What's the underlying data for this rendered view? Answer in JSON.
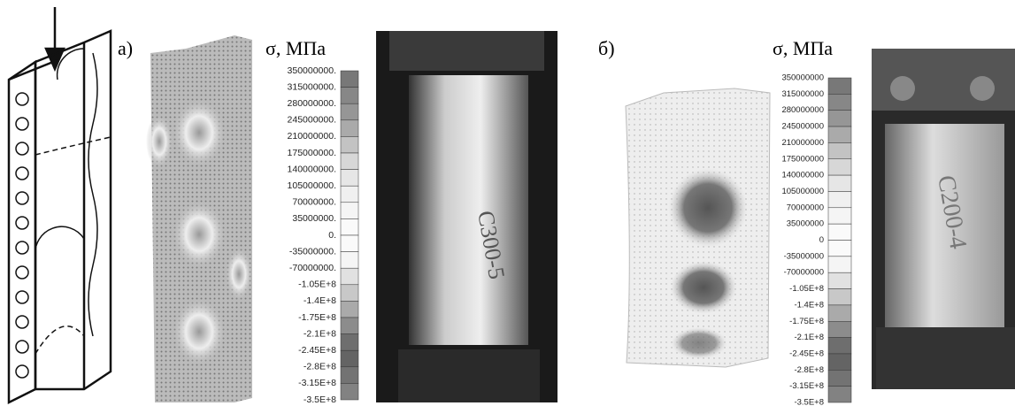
{
  "panel_a": {
    "label": "а)",
    "legend": {
      "title": "σ, МПа",
      "labels": [
        "350000000.",
        "315000000.",
        "280000000.",
        "245000000.",
        "210000000.",
        "175000000.",
        "140000000.",
        "105000000.",
        "70000000.",
        "35000000.",
        "0.",
        "-35000000.",
        "-70000000.",
        "-1.05E+8",
        "-1.4E+8",
        "-1.75E+8",
        "-2.1E+8",
        "-2.45E+8",
        "-2.8E+8",
        "-3.15E+8",
        "-3.5E+8"
      ]
    },
    "photo_text": "С300-5"
  },
  "panel_b": {
    "label": "б)",
    "legend": {
      "title": "σ, МПа",
      "labels": [
        "350000000",
        "315000000",
        "280000000",
        "245000000",
        "210000000",
        "175000000",
        "140000000",
        "105000000",
        "70000000",
        "35000000",
        "0",
        "-35000000",
        "-70000000",
        "-1.05E+8",
        "-1.4E+8",
        "-1.75E+8",
        "-2.1E+8",
        "-2.45E+8",
        "-2.8E+8",
        "-3.15E+8",
        "-3.5E+8"
      ]
    },
    "photo_text": "С200-4"
  }
}
